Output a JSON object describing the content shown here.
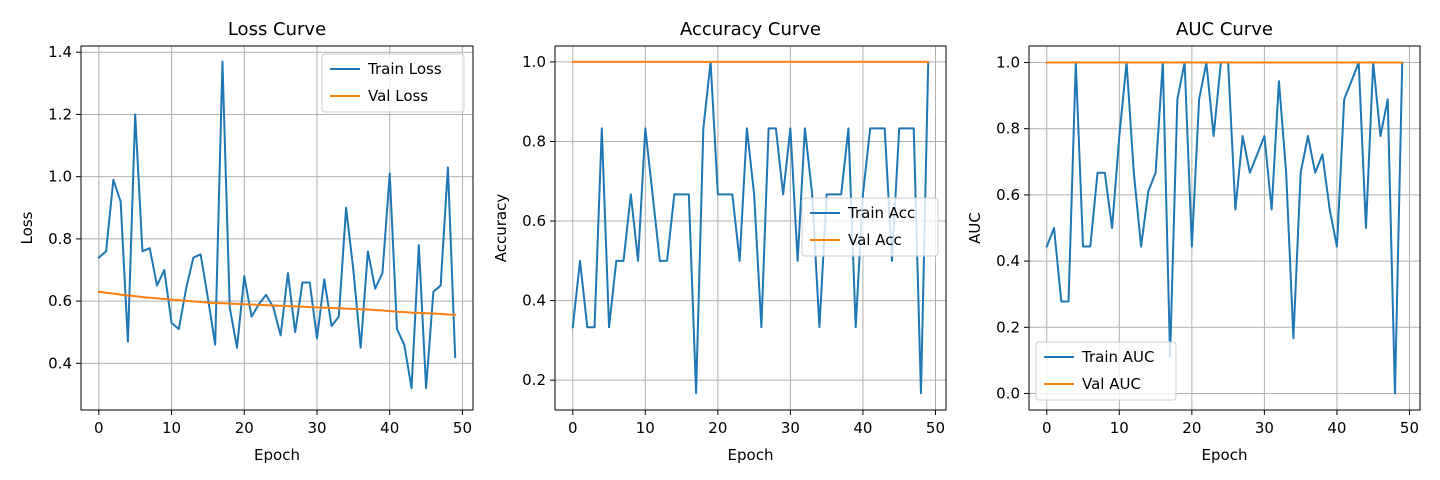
{
  "colors": {
    "train": "#1f77b4",
    "val": "#ff7f0e",
    "grid": "#b0b0b0",
    "spine": "#000000"
  },
  "chart_data": [
    {
      "type": "line",
      "title": "Loss Curve",
      "xlabel": "Epoch",
      "ylabel": "Loss",
      "xlim": [
        -2.45,
        51.45
      ],
      "ylim": [
        0.25,
        1.42
      ],
      "xticks": [
        0,
        10,
        20,
        30,
        40,
        50
      ],
      "yticks": [
        0.4,
        0.6,
        0.8,
        1.0,
        1.2,
        1.4
      ],
      "ytick_labels": [
        "0.4",
        "0.6",
        "0.8",
        "1.0",
        "1.2",
        "1.4"
      ],
      "grid": true,
      "legend_position": "upper right",
      "series": [
        {
          "name": "Train Loss",
          "color": "#1f77b4",
          "x": [
            0,
            1,
            2,
            3,
            4,
            5,
            6,
            7,
            8,
            9,
            10,
            11,
            12,
            13,
            14,
            15,
            16,
            17,
            18,
            19,
            20,
            21,
            22,
            23,
            24,
            25,
            26,
            27,
            28,
            29,
            30,
            31,
            32,
            33,
            34,
            35,
            36,
            37,
            38,
            39,
            40,
            41,
            42,
            43,
            44,
            45,
            46,
            47,
            48,
            49
          ],
          "values": [
            0.74,
            0.76,
            0.99,
            0.92,
            0.47,
            1.2,
            0.76,
            0.77,
            0.65,
            0.7,
            0.53,
            0.51,
            0.64,
            0.74,
            0.75,
            0.61,
            0.46,
            1.37,
            0.58,
            0.45,
            0.68,
            0.55,
            0.59,
            0.62,
            0.58,
            0.49,
            0.69,
            0.5,
            0.66,
            0.66,
            0.48,
            0.67,
            0.52,
            0.55,
            0.9,
            0.7,
            0.45,
            0.76,
            0.64,
            0.69,
            1.01,
            0.51,
            0.46,
            0.32,
            0.78,
            0.32,
            0.63,
            0.65,
            1.03,
            0.42
          ]
        },
        {
          "name": "Val Loss",
          "color": "#ff7f0e",
          "x": [
            0,
            1,
            2,
            3,
            4,
            5,
            6,
            7,
            8,
            9,
            10,
            11,
            12,
            13,
            14,
            15,
            16,
            17,
            18,
            19,
            20,
            21,
            22,
            23,
            24,
            25,
            26,
            27,
            28,
            29,
            30,
            31,
            32,
            33,
            34,
            35,
            36,
            37,
            38,
            39,
            40,
            41,
            42,
            43,
            44,
            45,
            46,
            47,
            48,
            49
          ],
          "values": [
            0.63,
            0.627,
            0.624,
            0.621,
            0.618,
            0.616,
            0.613,
            0.611,
            0.609,
            0.607,
            0.605,
            0.603,
            0.601,
            0.599,
            0.597,
            0.595,
            0.594,
            0.593,
            0.592,
            0.591,
            0.59,
            0.589,
            0.588,
            0.587,
            0.586,
            0.585,
            0.584,
            0.583,
            0.582,
            0.581,
            0.58,
            0.579,
            0.578,
            0.577,
            0.576,
            0.575,
            0.574,
            0.573,
            0.571,
            0.57,
            0.568,
            0.566,
            0.565,
            0.563,
            0.562,
            0.561,
            0.56,
            0.559,
            0.557,
            0.556
          ]
        }
      ]
    },
    {
      "type": "line",
      "title": "Accuracy Curve",
      "xlabel": "Epoch",
      "ylabel": "Accuracy",
      "xlim": [
        -2.45,
        51.45
      ],
      "ylim": [
        0.125,
        1.04
      ],
      "xticks": [
        0,
        10,
        20,
        30,
        40,
        50
      ],
      "yticks": [
        0.2,
        0.4,
        0.6,
        0.8,
        1.0
      ],
      "ytick_labels": [
        "0.2",
        "0.4",
        "0.6",
        "0.8",
        "1.0"
      ],
      "grid": true,
      "legend_position": "center right",
      "series": [
        {
          "name": "Train Acc",
          "color": "#1f77b4",
          "x": [
            0,
            1,
            2,
            3,
            4,
            5,
            6,
            7,
            8,
            9,
            10,
            11,
            12,
            13,
            14,
            15,
            16,
            17,
            18,
            19,
            20,
            21,
            22,
            23,
            24,
            25,
            26,
            27,
            28,
            29,
            30,
            31,
            32,
            33,
            34,
            35,
            36,
            37,
            38,
            39,
            40,
            41,
            42,
            43,
            44,
            45,
            46,
            47,
            48,
            49
          ],
          "values": [
            0.333,
            0.5,
            0.333,
            0.333,
            0.833,
            0.333,
            0.5,
            0.5,
            0.667,
            0.5,
            0.833,
            0.667,
            0.5,
            0.5,
            0.667,
            0.667,
            0.667,
            0.167,
            0.833,
            1.0,
            0.667,
            0.667,
            0.667,
            0.5,
            0.833,
            0.667,
            0.333,
            0.833,
            0.833,
            0.667,
            0.833,
            0.5,
            0.833,
            0.667,
            0.333,
            0.667,
            0.667,
            0.667,
            0.833,
            0.333,
            0.667,
            0.833,
            0.833,
            0.833,
            0.5,
            0.833,
            0.833,
            0.833,
            0.167,
            1.0
          ]
        },
        {
          "name": "Val Acc",
          "color": "#ff7f0e",
          "x": [
            0,
            49
          ],
          "values": [
            1.0,
            1.0
          ]
        }
      ]
    },
    {
      "type": "line",
      "title": "AUC Curve",
      "xlabel": "Epoch",
      "ylabel": "AUC",
      "xlim": [
        -2.45,
        51.45
      ],
      "ylim": [
        -0.05,
        1.05
      ],
      "xticks": [
        0,
        10,
        20,
        30,
        40,
        50
      ],
      "yticks": [
        0.0,
        0.2,
        0.4,
        0.6,
        0.8,
        1.0
      ],
      "ytick_labels": [
        "0.0",
        "0.2",
        "0.4",
        "0.6",
        "0.8",
        "1.0"
      ],
      "grid": true,
      "legend_position": "lower left",
      "series": [
        {
          "name": "Train AUC",
          "color": "#1f77b4",
          "x": [
            0,
            1,
            2,
            3,
            4,
            5,
            6,
            7,
            8,
            9,
            10,
            11,
            12,
            13,
            14,
            15,
            16,
            17,
            18,
            19,
            20,
            21,
            22,
            23,
            24,
            25,
            26,
            27,
            28,
            29,
            30,
            31,
            32,
            33,
            34,
            35,
            36,
            37,
            38,
            39,
            40,
            41,
            42,
            43,
            44,
            45,
            46,
            47,
            48,
            49
          ],
          "values": [
            0.444,
            0.5,
            0.278,
            0.278,
            1.0,
            0.444,
            0.444,
            0.667,
            0.667,
            0.5,
            0.778,
            1.0,
            0.667,
            0.444,
            0.611,
            0.667,
            1.0,
            0.111,
            0.889,
            1.0,
            0.444,
            0.889,
            1.0,
            0.778,
            1.0,
            1.0,
            0.556,
            0.778,
            0.667,
            0.722,
            0.778,
            0.556,
            0.944,
            0.667,
            0.167,
            0.667,
            0.778,
            0.667,
            0.722,
            0.556,
            0.444,
            0.889,
            0.944,
            1.0,
            0.5,
            1.0,
            0.778,
            0.889,
            0.0,
            1.0
          ]
        },
        {
          "name": "Val AUC",
          "color": "#ff7f0e",
          "x": [
            0,
            49
          ],
          "values": [
            1.0,
            1.0
          ]
        }
      ]
    }
  ]
}
